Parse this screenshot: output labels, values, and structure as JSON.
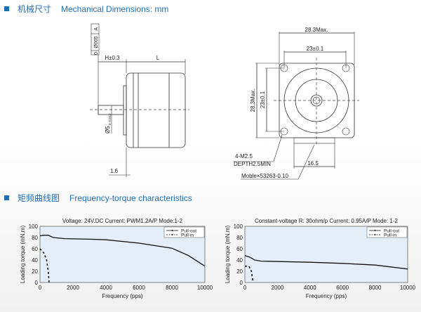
{
  "sections": {
    "mechanical": {
      "cn": "机械尺寸",
      "en": "Mechanical Dimensions: mm"
    },
    "frequency": {
      "cn": "矩频曲线图",
      "en": "Frequency-torque characteristics"
    }
  },
  "drawing": {
    "tolerance_frame": [
      "0",
      "Ø005",
      "A"
    ],
    "h_dim": "H±0.3",
    "l_dim": "L",
    "shaft_dia": "Ø5",
    "shaft_tol": "0 -0.012",
    "flange_dim": "1.6",
    "width_max": "28.3Max.",
    "hole_pitch_h": "23±0.1",
    "height_max": "28.3Max.",
    "hole_pitch_v": "23±0.1",
    "holes_note_1": "4-M2.5",
    "holes_note_2": "DEPTH2.5MIN",
    "connector_dim": "16.5",
    "connector_note": "Moble×53263-0.10"
  },
  "accent_color": "#1f6fb2",
  "chart_data": [
    {
      "type": "line",
      "title": "Voltage: 24V.DC Current: PWM1.2A/P Mode:1-2",
      "xlabel": "Frequency (pps)",
      "ylabel": "Loading torque (mN.m)",
      "xlim": [
        0,
        10000
      ],
      "ylim": [
        0,
        100
      ],
      "xticks": [
        "0",
        "2000",
        "4000",
        "6000",
        "8000",
        "10000"
      ],
      "yticks": [
        "0",
        "20",
        "40",
        "60",
        "80",
        "100"
      ],
      "legend": "top-right",
      "series": [
        {
          "name": "Pull-out",
          "style": "solid",
          "x": [
            0,
            200,
            500,
            800,
            1500,
            3000,
            4000,
            6000,
            8000,
            9000,
            10000
          ],
          "y": [
            83,
            84,
            84,
            80,
            78,
            77,
            76,
            70,
            61,
            48,
            29
          ]
        },
        {
          "name": "Pull-in",
          "style": "dashed",
          "x": [
            0,
            250,
            400,
            500,
            550
          ],
          "y": [
            60,
            52,
            40,
            20,
            0
          ]
        }
      ]
    },
    {
      "type": "line",
      "title": "Constant-voltage R: 30ohm/p Current: 0.95A/P Mode: 1-2",
      "xlabel": "Frequency (pps)",
      "ylabel": "Loading torque (mN.m)",
      "xlim": [
        0,
        10000
      ],
      "ylim": [
        0,
        100
      ],
      "xticks": [
        "0",
        "2000",
        "4000",
        "6000",
        "8000",
        "10000"
      ],
      "yticks": [
        "0",
        "20",
        "40",
        "60",
        "80",
        "100"
      ],
      "legend": "top-right",
      "series": [
        {
          "name": "Pull-out",
          "style": "solid",
          "x": [
            0,
            300,
            600,
            1000,
            4000,
            6000,
            8000,
            10000
          ],
          "y": [
            48,
            45,
            40,
            38,
            36,
            34,
            31,
            24
          ]
        },
        {
          "name": "Pull-in",
          "style": "dashed",
          "x": [
            0,
            250,
            400,
            500
          ],
          "y": [
            29,
            29,
            20,
            0
          ]
        }
      ]
    }
  ]
}
